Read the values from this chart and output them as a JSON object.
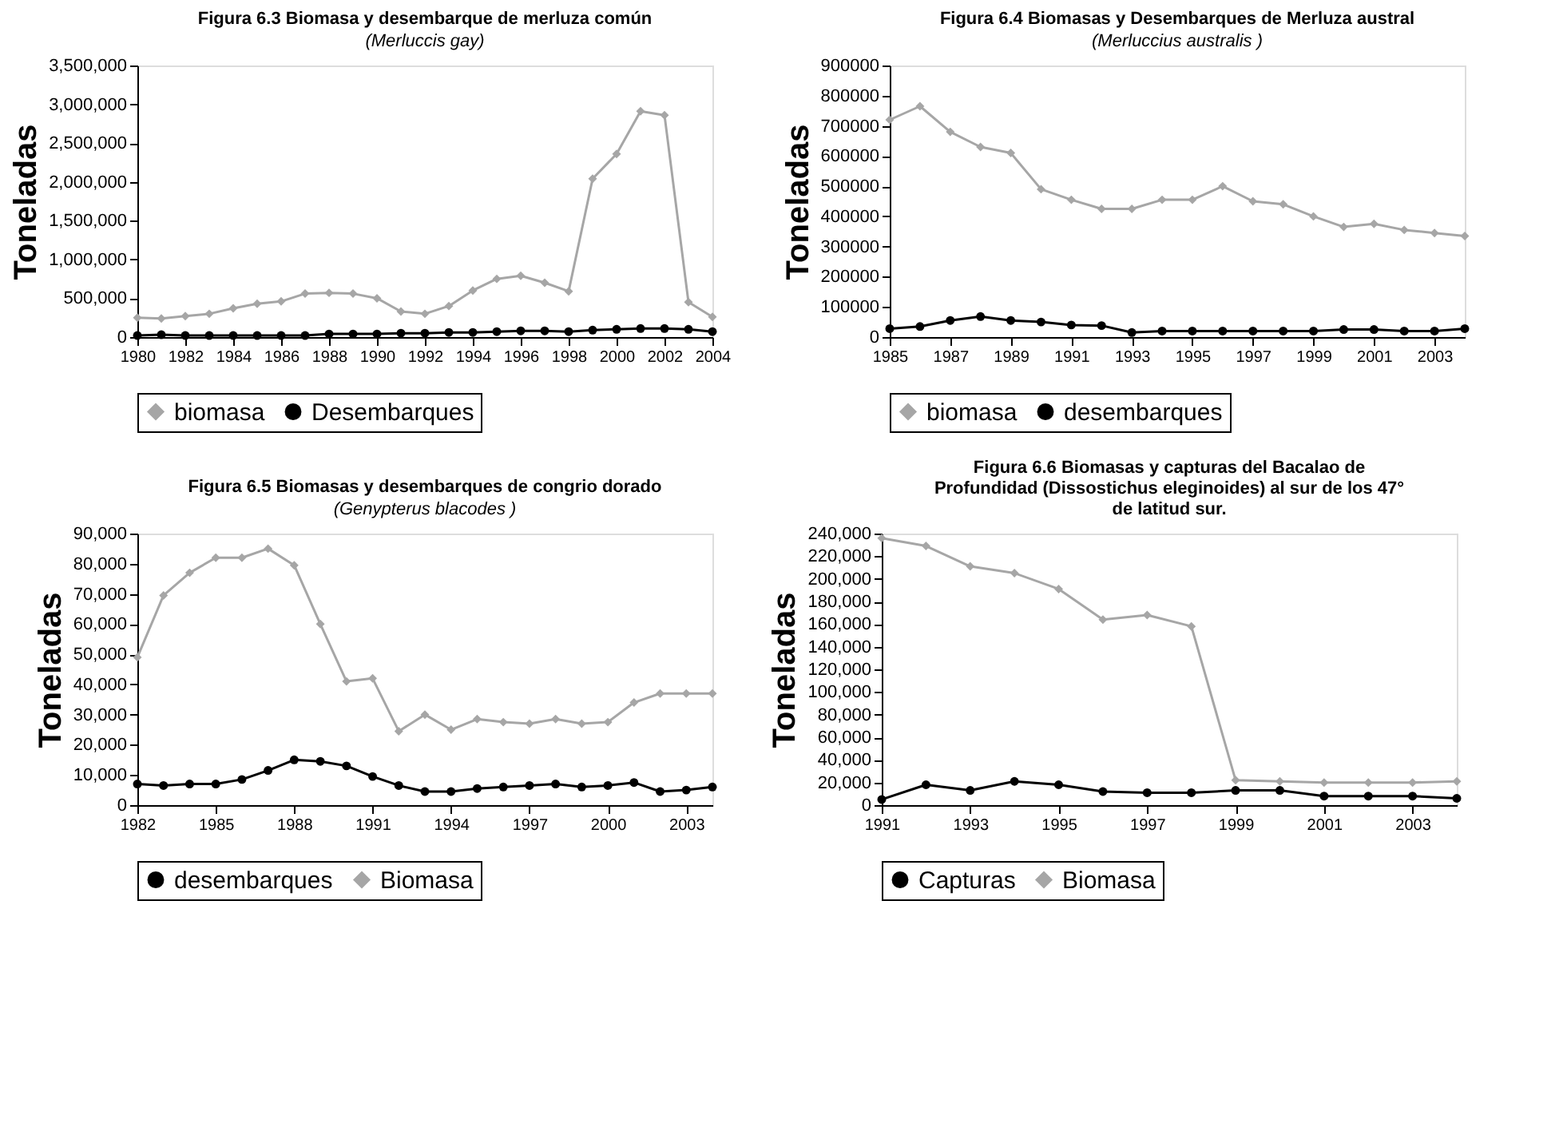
{
  "chart_data": [
    {
      "type": "line",
      "title": "Figura 6.3 Biomasa y desembarque de merluza común",
      "subtitle": "(Merluccis gay)",
      "ylabel": "Toneladas",
      "x": [
        1980,
        1981,
        1982,
        1983,
        1984,
        1985,
        1986,
        1987,
        1988,
        1989,
        1990,
        1991,
        1992,
        1993,
        1994,
        1995,
        1996,
        1997,
        1998,
        1999,
        2000,
        2001,
        2002,
        2003,
        2004
      ],
      "series": [
        {
          "name": "biomasa",
          "color": "#a6a6a6",
          "marker": "diamond",
          "values": [
            250000,
            240000,
            270000,
            300000,
            370000,
            430000,
            460000,
            560000,
            570000,
            560000,
            500000,
            330000,
            300000,
            400000,
            600000,
            750000,
            790000,
            700000,
            590000,
            2040000,
            2360000,
            2910000,
            2860000,
            450000,
            260000
          ]
        },
        {
          "name": "Desembarques",
          "color": "#000000",
          "marker": "circle",
          "values": [
            20000,
            30000,
            20000,
            20000,
            20000,
            20000,
            20000,
            20000,
            40000,
            40000,
            40000,
            50000,
            50000,
            60000,
            60000,
            70000,
            80000,
            80000,
            70000,
            90000,
            100000,
            110000,
            110000,
            100000,
            70000
          ]
        }
      ],
      "xlim": [
        1980,
        2004
      ],
      "xticks": [
        1980,
        1982,
        1984,
        1986,
        1988,
        1990,
        1992,
        1994,
        1996,
        1998,
        2000,
        2002,
        2004
      ],
      "ylim": [
        0,
        3500000
      ],
      "yticks": [
        0,
        {
          "value": 500000,
          "label": "500,000"
        },
        {
          "value": 1000000,
          "label": "1,000,000"
        },
        {
          "value": 1500000,
          "label": "1,500,000"
        },
        {
          "value": 2000000,
          "label": "2,000,000"
        },
        {
          "value": 2500000,
          "label": "2,500,000"
        },
        {
          "value": 3000000,
          "label": "3,000,000"
        },
        {
          "value": 3500000,
          "label": "3,500,000"
        }
      ],
      "legend": "bottom",
      "grid": false,
      "line_style": "solid"
    },
    {
      "type": "line",
      "title": "Figura 6.4  Biomasas y Desembarques de Merluza austral",
      "subtitle": "(Merluccius australis )",
      "ylabel": "Toneladas",
      "x": [
        1985,
        1986,
        1987,
        1988,
        1989,
        1990,
        1991,
        1992,
        1993,
        1994,
        1995,
        1996,
        1997,
        1998,
        1999,
        2000,
        2001,
        2002,
        2003,
        2004
      ],
      "series": [
        {
          "name": "biomasa",
          "color": "#a6a6a6",
          "marker": "diamond",
          "values": [
            720000,
            765000,
            680000,
            630000,
            610000,
            490000,
            455000,
            425000,
            425000,
            455000,
            455000,
            500000,
            450000,
            440000,
            400000,
            365000,
            375000,
            355000,
            345000,
            335000
          ]
        },
        {
          "name": "desembarques",
          "color": "#000000",
          "marker": "circle",
          "values": [
            28000,
            35000,
            55000,
            68000,
            55000,
            50000,
            40000,
            38000,
            15000,
            20000,
            20000,
            20000,
            20000,
            20000,
            20000,
            25000,
            25000,
            20000,
            20000,
            28000
          ]
        }
      ],
      "xlim": [
        1985,
        2004
      ],
      "xticks": [
        1985,
        1987,
        1989,
        1991,
        1993,
        1995,
        1997,
        1999,
        2001,
        2003
      ],
      "ylim": [
        0,
        900000
      ],
      "yticks": [
        0,
        100000,
        200000,
        300000,
        400000,
        500000,
        600000,
        700000,
        800000,
        900000
      ],
      "legend": "bottom",
      "grid": false,
      "line_style": "solid"
    },
    {
      "type": "line",
      "title": "Figura 6.5 Biomasas y desembarques de congrio dorado",
      "subtitle": "(Genypterus blacodes )",
      "ylabel": "Toneladas",
      "x": [
        1982,
        1983,
        1984,
        1985,
        1986,
        1987,
        1988,
        1989,
        1990,
        1991,
        1992,
        1993,
        1994,
        1995,
        1996,
        1997,
        1998,
        1999,
        2000,
        2001,
        2002,
        2003,
        2004
      ],
      "series": [
        {
          "name": "desembarques",
          "color": "#000000",
          "marker": "circle",
          "values": [
            7000,
            6500,
            7000,
            7000,
            8500,
            11500,
            15000,
            14500,
            13000,
            9500,
            6500,
            4500,
            4500,
            5500,
            6000,
            6500,
            7000,
            6000,
            6500,
            7500,
            4500,
            5000,
            6000
          ]
        },
        {
          "name": "Biomasa",
          "color": "#a6a6a6",
          "marker": "diamond",
          "values": [
            49000,
            69500,
            77000,
            82000,
            82000,
            85000,
            79500,
            60000,
            41000,
            42000,
            24500,
            30000,
            25000,
            28500,
            27500,
            27000,
            28500,
            27000,
            27500,
            34000,
            37000,
            37000,
            37000
          ]
        }
      ],
      "xlim": [
        1982,
        2004
      ],
      "xticks": [
        1982,
        1985,
        1988,
        1991,
        1994,
        1997,
        2000,
        2003
      ],
      "ylim": [
        0,
        90000
      ],
      "yticks": [
        0,
        {
          "value": 10000,
          "label": "10,000"
        },
        {
          "value": 20000,
          "label": "20,000"
        },
        {
          "value": 30000,
          "label": "30,000"
        },
        {
          "value": 40000,
          "label": "40,000"
        },
        {
          "value": 50000,
          "label": "50,000"
        },
        {
          "value": 60000,
          "label": "60,000"
        },
        {
          "value": 70000,
          "label": "70,000"
        },
        {
          "value": 80000,
          "label": "80,000"
        },
        {
          "value": 90000,
          "label": "90,000"
        }
      ],
      "legend": "bottom",
      "grid": false,
      "line_style": "solid"
    },
    {
      "type": "line",
      "title": [
        "Figura 6.6 Biomasas y capturas del Bacalao de",
        "Profundidad (Dissostichus eleginoides) al sur de los 47°",
        "de latitud sur."
      ],
      "ylabel": "Toneladas",
      "x": [
        1991,
        1992,
        1993,
        1994,
        1995,
        1996,
        1997,
        1998,
        1999,
        2000,
        2001,
        2002,
        2003,
        2004
      ],
      "series": [
        {
          "name": "Capturas",
          "color": "#000000",
          "marker": "circle",
          "values": [
            5000,
            18000,
            13000,
            21000,
            18000,
            12000,
            11000,
            11000,
            13000,
            13000,
            8000,
            8000,
            8000,
            6000
          ]
        },
        {
          "name": "Biomasa",
          "color": "#a6a6a6",
          "marker": "diamond",
          "values": [
            236000,
            229000,
            211000,
            205000,
            191000,
            164000,
            168000,
            158000,
            22000,
            21000,
            20000,
            20000,
            20000,
            21000
          ]
        }
      ],
      "xlim": [
        1991,
        2004
      ],
      "xticks": [
        1991,
        1993,
        1995,
        1997,
        1999,
        2001,
        2003
      ],
      "ylim": [
        0,
        240000
      ],
      "yticks": [
        0,
        {
          "value": 20000,
          "label": "20,000"
        },
        {
          "value": 40000,
          "label": "40,000"
        },
        {
          "value": 60000,
          "label": "60,000"
        },
        {
          "value": 80000,
          "label": "80,000"
        },
        {
          "value": 100000,
          "label": "100,000"
        },
        {
          "value": 120000,
          "label": "120,000"
        },
        {
          "value": 140000,
          "label": "140,000"
        },
        {
          "value": 160000,
          "label": "160,000"
        },
        {
          "value": 180000,
          "label": "180,000"
        },
        {
          "value": 200000,
          "label": "200,000"
        },
        {
          "value": 220000,
          "label": "220,000"
        },
        {
          "value": 240000,
          "label": "240,000"
        }
      ],
      "legend": "bottom",
      "grid": false,
      "line_style": "solid"
    }
  ]
}
